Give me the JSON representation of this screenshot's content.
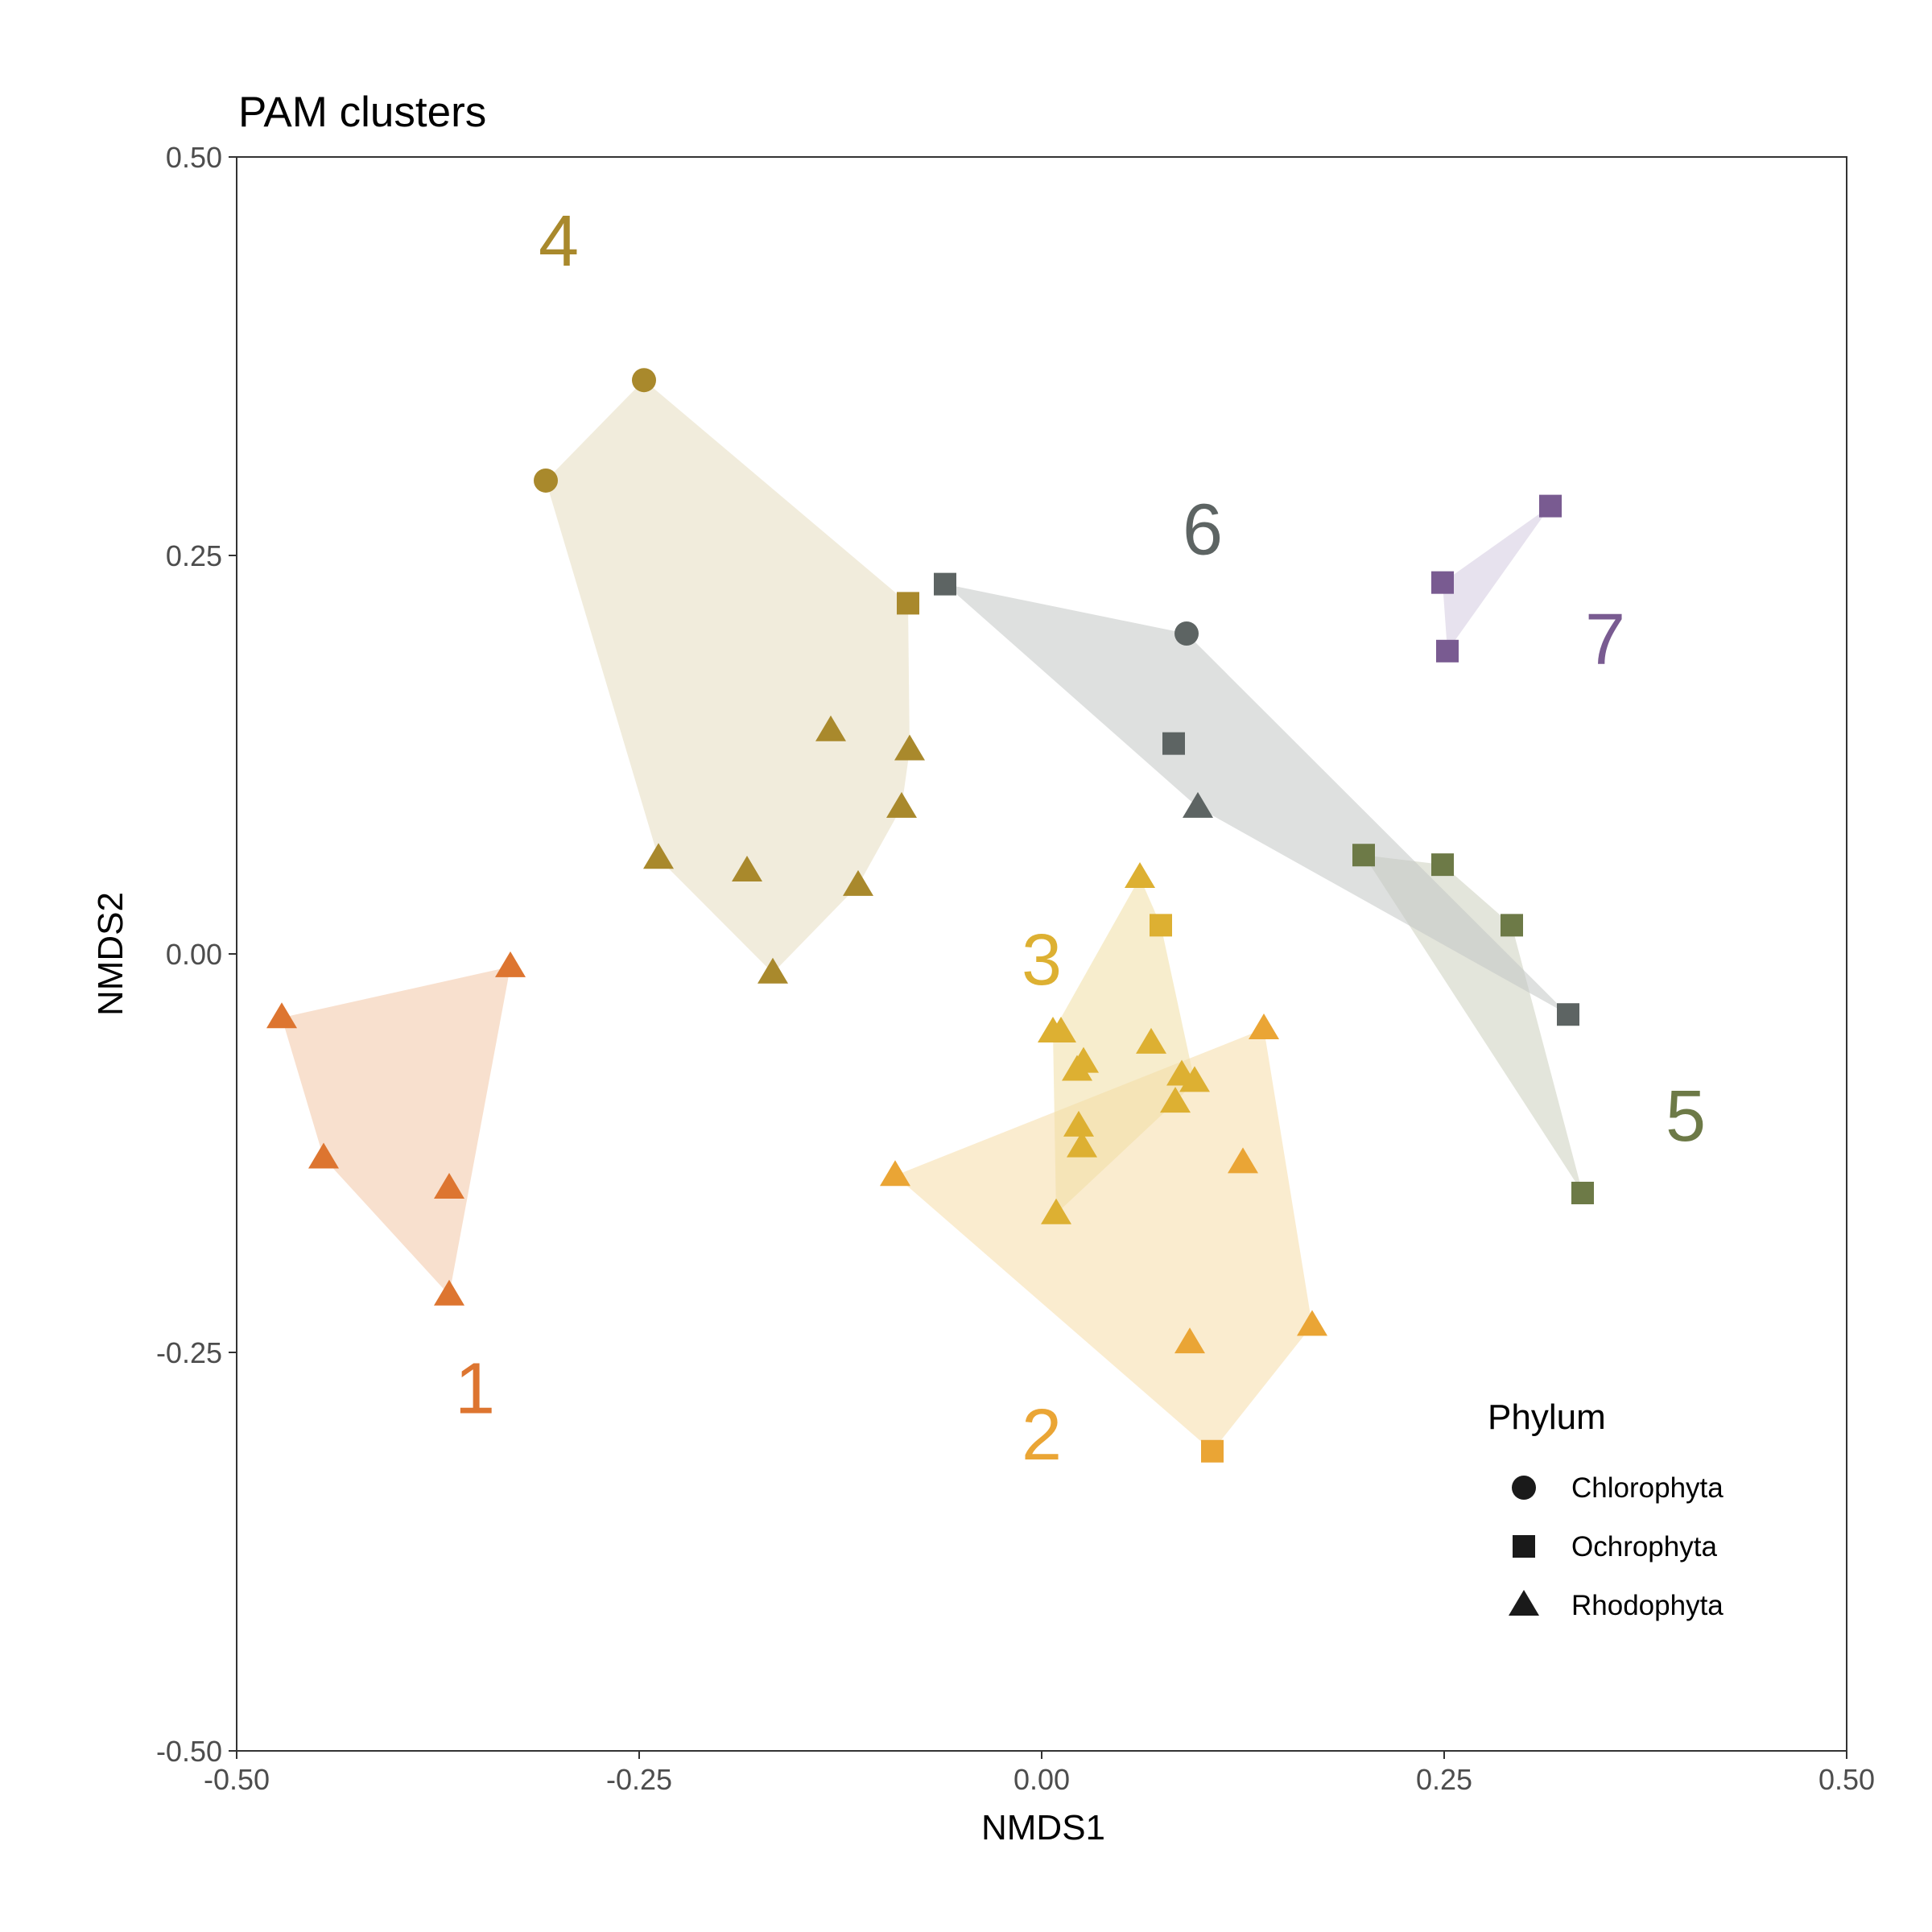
{
  "chart_data": {
    "type": "scatter",
    "title": "PAM clusters",
    "xlabel": "NMDS1",
    "ylabel": "NMDS2",
    "xlim": [
      -0.5,
      0.5
    ],
    "ylim": [
      -0.5,
      0.5
    ],
    "x_ticks": [
      "-0.50",
      "-0.25",
      "0.00",
      "0.25",
      "0.50"
    ],
    "y_ticks": [
      "-0.50",
      "-0.25",
      "0.00",
      "0.25",
      "0.50"
    ],
    "grid": false,
    "legend": {
      "title": "Phylum",
      "placement": "bottom-right inside",
      "entries": [
        {
          "label": "Chlorophyta",
          "shape": "circle"
        },
        {
          "label": "Ochrophyta",
          "shape": "square"
        },
        {
          "label": "Rhodophyta",
          "shape": "triangle"
        }
      ]
    },
    "clusters": [
      {
        "id": "1",
        "color": "#dd7530",
        "fill": "#f2c7a6",
        "label_pos": [
          -0.352,
          -0.272
        ],
        "points": [
          {
            "x": -0.472,
            "y": -0.04,
            "shape": "triangle"
          },
          {
            "x": -0.446,
            "y": -0.128,
            "shape": "triangle"
          },
          {
            "x": -0.368,
            "y": -0.147,
            "shape": "triangle"
          },
          {
            "x": -0.368,
            "y": -0.214,
            "shape": "triangle"
          },
          {
            "x": -0.33,
            "y": -0.008,
            "shape": "triangle"
          }
        ]
      },
      {
        "id": "2",
        "color": "#eaa535",
        "fill": "#f6dda8",
        "label_pos": 0.0,
        "label_pos_xy": [
          0.0,
          -0.301
        ],
        "points": [
          {
            "x": -0.091,
            "y": -0.139,
            "shape": "triangle"
          },
          {
            "x": 0.138,
            "y": -0.047,
            "shape": "triangle"
          },
          {
            "x": 0.125,
            "y": -0.131,
            "shape": "triangle"
          },
          {
            "x": 0.168,
            "y": -0.233,
            "shape": "triangle"
          },
          {
            "x": 0.092,
            "y": -0.244,
            "shape": "triangle"
          },
          {
            "x": 0.106,
            "y": -0.312,
            "shape": "square"
          }
        ]
      },
      {
        "id": "3",
        "color": "#ddb032",
        "fill": "#f1dfa4",
        "label_pos_xy": [
          0.0,
          -0.003
        ],
        "points": [
          {
            "x": 0.061,
            "y": 0.048,
            "shape": "triangle"
          },
          {
            "x": 0.074,
            "y": 0.018,
            "shape": "square"
          },
          {
            "x": 0.007,
            "y": -0.049,
            "shape": "triangle"
          },
          {
            "x": 0.012,
            "y": -0.049,
            "shape": "triangle"
          },
          {
            "x": 0.068,
            "y": -0.056,
            "shape": "triangle"
          },
          {
            "x": 0.026,
            "y": -0.068,
            "shape": "triangle"
          },
          {
            "x": 0.022,
            "y": -0.073,
            "shape": "triangle"
          },
          {
            "x": 0.087,
            "y": -0.076,
            "shape": "triangle"
          },
          {
            "x": 0.095,
            "y": -0.08,
            "shape": "triangle"
          },
          {
            "x": 0.083,
            "y": -0.093,
            "shape": "triangle"
          },
          {
            "x": 0.023,
            "y": -0.108,
            "shape": "triangle"
          },
          {
            "x": 0.025,
            "y": -0.121,
            "shape": "triangle"
          },
          {
            "x": 0.009,
            "y": -0.163,
            "shape": "triangle"
          }
        ]
      },
      {
        "id": "4",
        "color": "#a9892c",
        "fill": "#e5dcbf",
        "label_pos_xy": [
          -0.3,
          0.448
        ],
        "points": [
          {
            "x": -0.247,
            "y": 0.36,
            "shape": "circle"
          },
          {
            "x": -0.308,
            "y": 0.297,
            "shape": "circle"
          },
          {
            "x": -0.083,
            "y": 0.22,
            "shape": "square"
          },
          {
            "x": -0.131,
            "y": 0.14,
            "shape": "triangle"
          },
          {
            "x": -0.082,
            "y": 0.128,
            "shape": "triangle"
          },
          {
            "x": -0.087,
            "y": 0.092,
            "shape": "triangle"
          },
          {
            "x": -0.238,
            "y": 0.06,
            "shape": "triangle"
          },
          {
            "x": -0.183,
            "y": 0.052,
            "shape": "triangle"
          },
          {
            "x": -0.114,
            "y": 0.043,
            "shape": "triangle"
          },
          {
            "x": -0.167,
            "y": -0.012,
            "shape": "triangle"
          }
        ]
      },
      {
        "id": "5",
        "color": "#6d7a47",
        "fill": "#ccd0bd",
        "label_pos_xy": [
          0.4,
          -0.101
        ],
        "points": [
          {
            "x": 0.2,
            "y": 0.062,
            "shape": "square"
          },
          {
            "x": 0.249,
            "y": 0.056,
            "shape": "square"
          },
          {
            "x": 0.292,
            "y": 0.018,
            "shape": "square"
          },
          {
            "x": 0.336,
            "y": -0.15,
            "shape": "square"
          }
        ]
      },
      {
        "id": "6",
        "color": "#5d6463",
        "fill": "#c3c6c5",
        "label_pos_xy": [
          0.1,
          0.267
        ],
        "points": [
          {
            "x": -0.06,
            "y": 0.232,
            "shape": "square"
          },
          {
            "x": 0.09,
            "y": 0.201,
            "shape": "circle"
          },
          {
            "x": 0.082,
            "y": 0.132,
            "shape": "square"
          },
          {
            "x": 0.097,
            "y": 0.092,
            "shape": "triangle"
          },
          {
            "x": 0.327,
            "y": -0.038,
            "shape": "square"
          }
        ]
      },
      {
        "id": "7",
        "color": "#795b91",
        "fill": "#d3cbe0",
        "label_pos_xy": [
          0.35,
          0.198
        ],
        "points": [
          {
            "x": 0.316,
            "y": 0.281,
            "shape": "square"
          },
          {
            "x": 0.249,
            "y": 0.233,
            "shape": "square"
          },
          {
            "x": 0.252,
            "y": 0.19,
            "shape": "square"
          }
        ]
      }
    ]
  }
}
